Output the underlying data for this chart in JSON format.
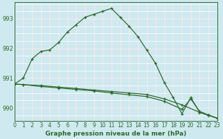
{
  "series": [
    {
      "label": "line_main",
      "x": [
        0,
        1,
        2,
        3,
        4,
        5,
        6,
        7,
        8,
        9,
        10,
        11,
        12,
        13,
        14,
        15,
        16,
        17,
        18,
        19,
        20,
        21,
        22,
        23
      ],
      "y": [
        990.8,
        991.0,
        991.65,
        991.9,
        991.95,
        992.2,
        992.55,
        992.8,
        993.05,
        993.15,
        993.25,
        993.35,
        993.05,
        992.75,
        992.4,
        991.95,
        991.5,
        990.85,
        990.35,
        989.8,
        990.35,
        989.85,
        989.75,
        989.65
      ],
      "color": "#2d6a2d",
      "marker": "+"
    },
    {
      "label": "line_flat1",
      "x": [
        0,
        1,
        3,
        5,
        7,
        9,
        11,
        13,
        15,
        17,
        19,
        21,
        22,
        23
      ],
      "y": [
        990.8,
        990.78,
        990.75,
        990.7,
        990.65,
        990.6,
        990.55,
        990.5,
        990.45,
        990.3,
        990.1,
        989.85,
        989.75,
        989.65
      ],
      "color": "#2d6a2d",
      "marker": "+"
    },
    {
      "label": "line_flat2",
      "x": [
        0,
        1,
        3,
        5,
        7,
        9,
        11,
        13,
        15,
        17,
        19,
        20,
        21,
        22,
        23
      ],
      "y": [
        990.8,
        990.78,
        990.72,
        990.67,
        990.62,
        990.57,
        990.5,
        990.44,
        990.38,
        990.22,
        989.95,
        990.3,
        989.88,
        989.76,
        989.65
      ],
      "color": "#2d6a2d",
      "marker": "+"
    }
  ],
  "xlim": [
    0,
    23
  ],
  "ylim": [
    989.55,
    993.55
  ],
  "yticks": [
    990,
    991,
    992,
    993
  ],
  "xticks": [
    0,
    1,
    2,
    3,
    4,
    5,
    6,
    7,
    8,
    9,
    10,
    11,
    12,
    13,
    14,
    15,
    16,
    17,
    18,
    19,
    20,
    21,
    22,
    23
  ],
  "xlabel": "Graphe pression niveau de la mer (hPa)",
  "bg_color": "#cfe9f0",
  "white_grid_color": "#ffffff",
  "pink_grid_color": "#f0a0a0",
  "line_color": "#2d6a2d",
  "text_color": "#2d6a2d",
  "label_fontsize": 5.5,
  "xlabel_fontsize": 6.5
}
